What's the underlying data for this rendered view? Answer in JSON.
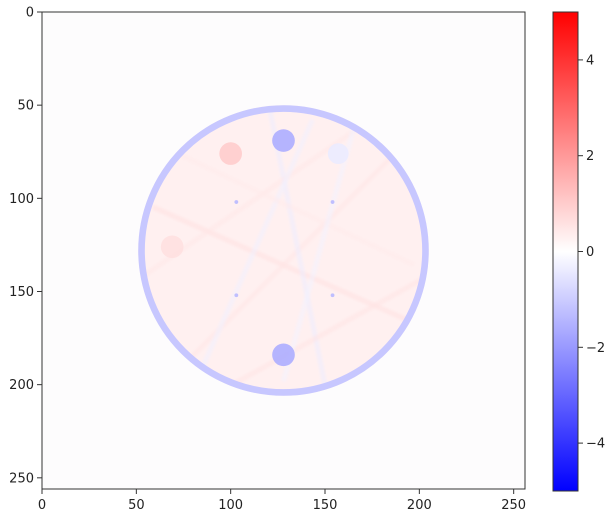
{
  "chart_data": {
    "type": "heatmap",
    "title": "",
    "xlabel": "",
    "ylabel": "",
    "image_size": [
      256,
      256
    ],
    "xlim": [
      0,
      256
    ],
    "ylim": [
      256,
      0
    ],
    "x_ticks": [
      0,
      50,
      100,
      150,
      200,
      250
    ],
    "y_ticks": [
      0,
      50,
      100,
      150,
      200,
      250
    ],
    "colormap": "bwr",
    "colorbar": {
      "range": [
        -5,
        5
      ],
      "ticks": [
        4,
        2,
        0,
        -2,
        -4
      ],
      "tick_labels": [
        "4",
        "2",
        "0",
        "−2",
        "−4"
      ]
    },
    "colors": {
      "min": "#0000ff",
      "mid": "#ffffff",
      "max": "#ff0000"
    },
    "disk": {
      "center": [
        128,
        128
      ],
      "radius": 77,
      "rim_width": 3.5,
      "rim_value": -1.1,
      "interior_value": 0.3
    },
    "features": [
      {
        "center": [
          128,
          69
        ],
        "radius": 6,
        "value": -1.6
      },
      {
        "center": [
          100,
          76
        ],
        "radius": 6,
        "value": 1.0
      },
      {
        "center": [
          157,
          76
        ],
        "radius": 5.5,
        "value": -0.4
      },
      {
        "center": [
          69,
          126
        ],
        "radius": 6,
        "value": 0.6
      },
      {
        "center": [
          128,
          184
        ],
        "radius": 6,
        "value": -1.6
      },
      {
        "center": [
          103,
          102
        ],
        "radius": 1,
        "value": -1.4
      },
      {
        "center": [
          154,
          102
        ],
        "radius": 1,
        "value": -1.4
      },
      {
        "center": [
          103,
          152
        ],
        "radius": 1,
        "value": -1.4
      },
      {
        "center": [
          154,
          152
        ],
        "radius": 1,
        "value": -1.4
      }
    ]
  }
}
